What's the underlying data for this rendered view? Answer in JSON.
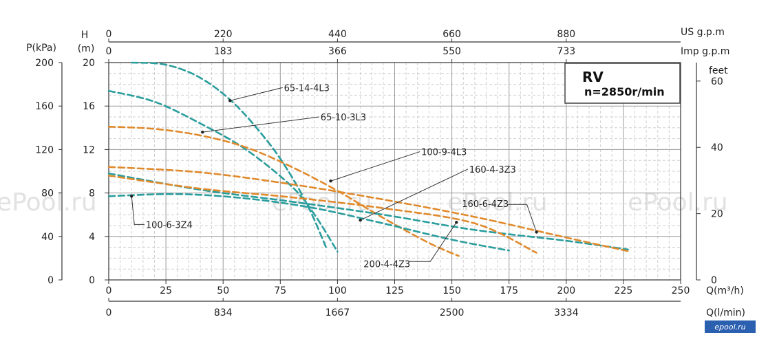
{
  "chart_data": {
    "type": "line",
    "title": "RV",
    "subtitle": "n=2850r/min",
    "watermark": "ePool.ru",
    "brand": "epool.ru",
    "colors": {
      "teal": "#2a9d9d",
      "orange": "#e08a2c",
      "grid": "#bbbbbb"
    },
    "axes": {
      "x_flow": {
        "label": "Q(m³/h)",
        "range": [
          0,
          250
        ],
        "ticks": [
          "0",
          "25",
          "50",
          "75",
          "100",
          "125",
          "150",
          "175",
          "200",
          "225",
          "250"
        ]
      },
      "x_lmin": {
        "label": "Q(l/min)",
        "ticks": [
          {
            "value": 0,
            "label": "0"
          },
          {
            "value": 50,
            "label": "834"
          },
          {
            "value": 100,
            "label": "1667"
          },
          {
            "value": 150,
            "label": "2500"
          },
          {
            "value": 200,
            "label": "3334"
          }
        ]
      },
      "x_usgpm": {
        "label": "US g.p.m",
        "ticks": [
          {
            "value": 0,
            "label": "0"
          },
          {
            "value": 50,
            "label": "220"
          },
          {
            "value": 100,
            "label": "440"
          },
          {
            "value": 150,
            "label": "660"
          },
          {
            "value": 200,
            "label": "880"
          }
        ]
      },
      "x_impgpm": {
        "label": "Imp g.p.m",
        "ticks": [
          {
            "value": 0,
            "label": "0"
          },
          {
            "value": 50,
            "label": "183"
          },
          {
            "value": 100,
            "label": "366"
          },
          {
            "value": 150,
            "label": "550"
          },
          {
            "value": 200,
            "label": "733"
          }
        ]
      },
      "y_head": {
        "label": "H",
        "unit": "(m)",
        "range": [
          0,
          20
        ],
        "ticks": [
          "0",
          "4",
          "8",
          "12",
          "16",
          "20"
        ]
      },
      "y_kpa": {
        "label": "P(kPa)",
        "ticks": [
          "0",
          "40",
          "80",
          "120",
          "160",
          "200"
        ]
      },
      "y_feet": {
        "label": "feet",
        "ticks": [
          {
            "value": 0,
            "label": "0"
          },
          {
            "value": 6.1,
            "label": "20"
          },
          {
            "value": 12.2,
            "label": "40"
          },
          {
            "value": 18.3,
            "label": "60"
          }
        ]
      }
    },
    "series": [
      {
        "name": "65-14-4L3",
        "color": "teal",
        "points": [
          [
            10,
            20
          ],
          [
            25,
            19.8
          ],
          [
            40,
            18.6
          ],
          [
            55,
            16.2
          ],
          [
            70,
            12.6
          ],
          [
            80,
            9.5
          ],
          [
            88,
            6.4
          ],
          [
            95,
            3.0
          ]
        ],
        "label_value": [
          76,
          17.7
        ],
        "marker": [
          53,
          16.5
        ]
      },
      {
        "name": "65-10-3L3",
        "color": "teal",
        "points": [
          [
            0,
            17.4
          ],
          [
            20,
            16.4
          ],
          [
            40,
            14.4
          ],
          [
            60,
            12.0
          ],
          [
            80,
            8.6
          ],
          [
            90,
            6.0
          ],
          [
            100,
            2.6
          ]
        ],
        "label_value": [
          92,
          15
        ],
        "marker": [
          41,
          13.6
        ]
      },
      {
        "name": "100-9-4L3",
        "color": "orange",
        "points": [
          [
            0,
            14.1
          ],
          [
            20,
            13.9
          ],
          [
            40,
            13.3
          ],
          [
            60,
            12.2
          ],
          [
            80,
            10.4
          ],
          [
            100,
            8.2
          ],
          [
            120,
            5.7
          ],
          [
            140,
            3.4
          ],
          [
            153,
            2.2
          ]
        ],
        "label_value": [
          136,
          11.8
        ],
        "marker": [
          97,
          9.1
        ]
      },
      {
        "name": "160-4-3Z3",
        "color": "teal",
        "points": [
          [
            0,
            9.8
          ],
          [
            40,
            8.3
          ],
          [
            80,
            7.2
          ],
          [
            120,
            6.0
          ],
          [
            160,
            4.6
          ],
          [
            200,
            3.6
          ],
          [
            227,
            2.8
          ]
        ],
        "label_value": [
          157,
          10.2
        ],
        "marker": [
          110,
          5.5
        ]
      },
      {
        "name": "160-6-4Z3",
        "color": "orange",
        "points": [
          [
            0,
            10.4
          ],
          [
            40,
            9.9
          ],
          [
            80,
            8.8
          ],
          [
            120,
            7.4
          ],
          [
            160,
            5.8
          ],
          [
            200,
            3.9
          ],
          [
            228,
            2.6
          ]
        ],
        "label_value": [
          155,
          7.2
        ],
        "marker": [
          187,
          4.4
        ]
      },
      {
        "name": "100-6-3Z4",
        "color": "teal",
        "points": [
          [
            0,
            7.7
          ],
          [
            30,
            7.9
          ],
          [
            60,
            7.5
          ],
          [
            90,
            6.6
          ],
          [
            120,
            5.2
          ],
          [
            150,
            3.7
          ],
          [
            175,
            2.7
          ]
        ],
        "label_value": [
          12,
          5.1
        ],
        "marker": [
          10,
          7.7
        ]
      },
      {
        "name": "200-4-4Z3",
        "color": "orange",
        "points": [
          [
            0,
            9.6
          ],
          [
            40,
            8.4
          ],
          [
            80,
            7.6
          ],
          [
            120,
            6.6
          ],
          [
            160,
            5.2
          ],
          [
            187,
            2.5
          ]
        ],
        "label_value": [
          112,
          1.5
        ],
        "marker": [
          152,
          5.3
        ]
      }
    ]
  }
}
